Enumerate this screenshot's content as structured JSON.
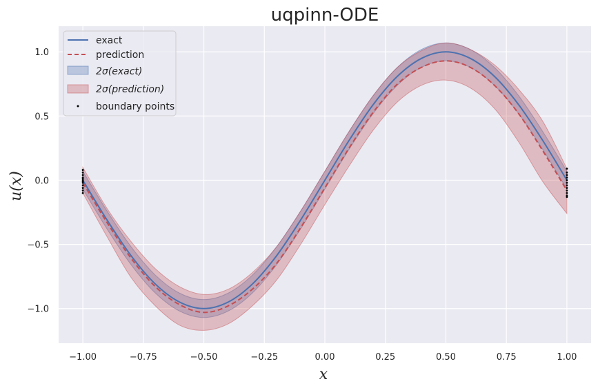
{
  "chart_data": {
    "type": "line",
    "title": "uqpinn-ODE",
    "xlabel": "x",
    "ylabel": "u(x)",
    "xlim": [
      -1.1,
      1.1
    ],
    "ylim": [
      -1.27,
      1.2
    ],
    "xticks": [
      -1.0,
      -0.75,
      -0.5,
      -0.25,
      0.0,
      0.25,
      0.5,
      0.75,
      1.0
    ],
    "xtick_labels": [
      "−1.00",
      "−0.75",
      "−0.50",
      "−0.25",
      "0.00",
      "0.25",
      "0.50",
      "0.75",
      "1.00"
    ],
    "yticks": [
      -1.0,
      -0.5,
      0.0,
      0.5,
      1.0
    ],
    "ytick_labels": [
      "−1.0",
      "−0.5",
      "0.0",
      "0.5",
      "1.0"
    ],
    "grid": true,
    "legend_position": "top-left",
    "x": [
      -1.0,
      -0.9,
      -0.8,
      -0.7,
      -0.6,
      -0.5,
      -0.4,
      -0.3,
      -0.2,
      -0.1,
      0.0,
      0.1,
      0.2,
      0.3,
      0.4,
      0.5,
      0.6,
      0.7,
      0.8,
      0.9,
      1.0
    ],
    "series": [
      {
        "name": "exact",
        "style": "solid",
        "color": "#4c72b0",
        "values": [
          0.0,
          -0.31,
          -0.59,
          -0.81,
          -0.95,
          -1.0,
          -0.95,
          -0.81,
          -0.59,
          -0.31,
          0.0,
          0.31,
          0.59,
          0.81,
          0.95,
          1.0,
          0.95,
          0.81,
          0.59,
          0.31,
          0.0
        ]
      },
      {
        "name": "prediction",
        "style": "dashed",
        "color": "#c44e52",
        "values": [
          -0.02,
          -0.33,
          -0.61,
          -0.83,
          -0.97,
          -1.03,
          -0.98,
          -0.85,
          -0.65,
          -0.37,
          -0.06,
          0.25,
          0.53,
          0.75,
          0.88,
          0.93,
          0.88,
          0.74,
          0.52,
          0.23,
          -0.08
        ]
      }
    ],
    "bands": [
      {
        "name": "2σ(exact)",
        "color": "#4c72b0",
        "lower": [
          -0.07,
          -0.38,
          -0.66,
          -0.88,
          -1.02,
          -1.07,
          -1.02,
          -0.88,
          -0.66,
          -0.38,
          -0.07,
          0.24,
          0.52,
          0.74,
          0.88,
          0.93,
          0.88,
          0.74,
          0.52,
          0.24,
          -0.07
        ],
        "upper": [
          0.07,
          -0.24,
          -0.52,
          -0.74,
          -0.88,
          -0.93,
          -0.88,
          -0.74,
          -0.52,
          -0.24,
          0.07,
          0.38,
          0.66,
          0.88,
          1.02,
          1.07,
          1.02,
          0.88,
          0.66,
          0.38,
          0.07
        ]
      },
      {
        "name": "2σ(prediction)",
        "color": "#c44e52",
        "lower": [
          -0.1,
          -0.44,
          -0.76,
          -0.98,
          -1.13,
          -1.17,
          -1.12,
          -0.98,
          -0.78,
          -0.5,
          -0.19,
          0.11,
          0.39,
          0.61,
          0.74,
          0.78,
          0.72,
          0.56,
          0.3,
          -0.01,
          -0.26
        ],
        "upper": [
          0.1,
          -0.22,
          -0.48,
          -0.69,
          -0.83,
          -0.89,
          -0.85,
          -0.72,
          -0.52,
          -0.24,
          0.07,
          0.38,
          0.66,
          0.88,
          1.01,
          1.07,
          1.02,
          0.9,
          0.71,
          0.46,
          0.09
        ]
      }
    ],
    "scatter": {
      "name": "boundary points",
      "color": "#000000",
      "x": [
        -1.0,
        -1.0,
        -1.0,
        -1.0,
        -1.0,
        -1.0,
        -1.0,
        -1.0,
        -1.0,
        -1.0,
        -1.0,
        -1.0,
        1.0,
        1.0,
        1.0,
        1.0,
        1.0,
        1.0,
        1.0,
        1.0,
        1.0,
        1.0,
        1.0,
        1.0
      ],
      "y": [
        0.08,
        0.06,
        0.04,
        0.02,
        0.01,
        0.0,
        -0.01,
        -0.02,
        -0.04,
        -0.06,
        -0.08,
        -0.1,
        0.09,
        0.06,
        0.04,
        0.02,
        0.0,
        -0.02,
        -0.04,
        -0.06,
        -0.08,
        -0.1,
        -0.12,
        -0.13
      ]
    }
  }
}
